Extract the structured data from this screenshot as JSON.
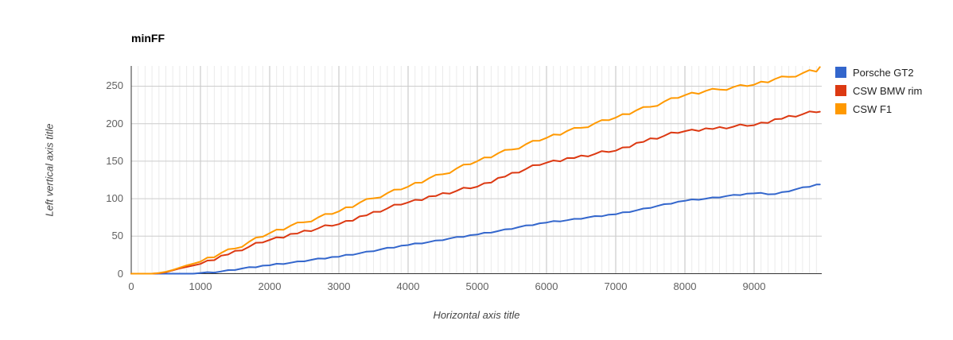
{
  "page": {
    "background": "#ffffff"
  },
  "styles": {
    "grid_major_y_color": "#cccccc",
    "grid_major_x_color": "#c2c2c2",
    "grid_minor_color": "#ebebeb",
    "axis_line_color": "#333333",
    "tick_label_color": "#616161",
    "axis_title_color": "#444444",
    "title_color": "#000000",
    "legend_text_color": "#222222"
  },
  "chart_data": {
    "type": "line",
    "title": "minFF",
    "xlabel": "Horizontal axis title",
    "ylabel": "Left vertical axis title",
    "xlim": [
      0,
      9977
    ],
    "ylim": [
      0,
      277
    ],
    "x_ticks": [
      0,
      1000,
      2000,
      3000,
      4000,
      5000,
      6000,
      7000,
      8000,
      9000
    ],
    "y_ticks": [
      0,
      50,
      100,
      150,
      200,
      250
    ],
    "minor_x_step": 100,
    "grid": true,
    "legend_position": "right",
    "x": [
      0,
      100,
      200,
      300,
      400,
      500,
      600,
      700,
      800,
      900,
      1000,
      1100,
      1200,
      1300,
      1400,
      1500,
      1600,
      1700,
      1800,
      1900,
      2000,
      2100,
      2200,
      2300,
      2400,
      2500,
      2600,
      2700,
      2800,
      2900,
      3000,
      3100,
      3200,
      3300,
      3400,
      3500,
      3600,
      3700,
      3800,
      3900,
      4000,
      4100,
      4200,
      4300,
      4400,
      4500,
      4600,
      4700,
      4800,
      4900,
      5000,
      5100,
      5200,
      5300,
      5400,
      5500,
      5600,
      5700,
      5800,
      5900,
      6000,
      6100,
      6200,
      6300,
      6400,
      6500,
      6600,
      6700,
      6800,
      6900,
      7000,
      7100,
      7200,
      7300,
      7400,
      7500,
      7600,
      7700,
      7800,
      7900,
      8000,
      8100,
      8200,
      8300,
      8400,
      8500,
      8600,
      8700,
      8800,
      8900,
      9000,
      9100,
      9200,
      9300,
      9400,
      9500,
      9600,
      9700,
      9800,
      9900,
      9950
    ],
    "series": [
      {
        "name": "Porsche GT2",
        "color": "#3366CC",
        "values": [
          0,
          0,
          0,
          0,
          0,
          0,
          0,
          0,
          0,
          0,
          1,
          2,
          1.5,
          3,
          4.8,
          4.9,
          6.9,
          8.7,
          8.5,
          10.7,
          11.1,
          13.2,
          12.8,
          14.5,
          16.3,
          16.4,
          18.4,
          20.2,
          20,
          22.2,
          22.6,
          25.1,
          25.1,
          27.2,
          29.4,
          29.9,
          32.3,
          34.5,
          34.7,
          37.3,
          38.1,
          40.4,
          40.3,
          42.2,
          44.3,
          44.6,
          46.9,
          48.9,
          49,
          51.4,
          52.1,
          54.6,
          54.7,
          56.8,
          59.1,
          59.6,
          62.1,
          64.3,
          64.6,
          67.2,
          68.1,
          70.1,
          69.7,
          71.3,
          73.1,
          73.1,
          75.1,
          76.8,
          76.6,
          78.7,
          79.1,
          81.8,
          82.1,
          84.4,
          86.9,
          87.6,
          90.3,
          92.7,
          93.2,
          96,
          97.1,
          99,
          98.5,
          100,
          101.7,
          101.6,
          103.5,
          105.1,
          104.8,
          106.8,
          107.1,
          107.7,
          105.8,
          106,
          108.7,
          109.6,
          112.5,
          115.1,
          115.8,
          118.8,
          119
        ]
      },
      {
        "name": "CSW BMW rim",
        "color": "#DC3912",
        "values": [
          0,
          0,
          0,
          0,
          0.5,
          2,
          4.5,
          7,
          9,
          11,
          13,
          17.5,
          18,
          24,
          25.5,
          30.5,
          30.9,
          35.8,
          41.2,
          41.6,
          45,
          48.5,
          48,
          53,
          53.5,
          57.5,
          56.7,
          60.4,
          64.6,
          63.8,
          66,
          70.3,
          70.6,
          76.4,
          77.7,
          82.5,
          82.5,
          87,
          92,
          92,
          95,
          98.5,
          98,
          103,
          103.5,
          107.5,
          106.7,
          110.4,
          114.6,
          113.8,
          116,
          120.7,
          121.4,
          127.6,
          129.3,
          134.5,
          134.7,
          139.4,
          144.6,
          144.8,
          148,
          150.9,
          149.8,
          154.2,
          154.1,
          157.5,
          156.3,
          159.6,
          163.4,
          162.2,
          164,
          168.3,
          168.6,
          174.4,
          175.7,
          180.5,
          179.9,
          183.8,
          188.2,
          187.6,
          190,
          192.1,
          190.2,
          193.8,
          192.9,
          195.5,
          193.5,
          196,
          199,
          197,
          198,
          201.5,
          201,
          206,
          206.5,
          210.5,
          209.3,
          212.6,
          216.3,
          215.1,
          216
        ]
      },
      {
        "name": "CSW F1",
        "color": "#FF9900",
        "values": [
          0,
          0,
          0,
          0,
          1,
          2.5,
          5,
          8,
          11,
          13.5,
          16,
          21.4,
          21.8,
          27.7,
          32.6,
          33.5,
          35.7,
          42.4,
          48.1,
          49.3,
          54,
          58.8,
          58.6,
          63.9,
          68.2,
          68.5,
          69.5,
          75,
          79.5,
          79.5,
          83,
          88.4,
          88.8,
          94.7,
          99.6,
          100.5,
          101.7,
          107.4,
          112.1,
          112.3,
          116,
          121.2,
          121.4,
          127.1,
          131.8,
          132.5,
          134.1,
          140.2,
          145.3,
          145.9,
          150,
          155,
          155,
          160.5,
          165,
          165.5,
          166.7,
          172.4,
          177.1,
          177.3,
          181,
          185.6,
          185.2,
          190.3,
          194.4,
          194.5,
          195.3,
          200.6,
          204.9,
          204.7,
          208,
          212.8,
          212.6,
          217.9,
          222.2,
          222.5,
          223.7,
          229.4,
          234.1,
          234.3,
          238,
          241.4,
          239.8,
          243.7,
          246.6,
          245.5,
          244.9,
          248.8,
          251.7,
          250.1,
          252,
          256,
          255,
          259.5,
          263,
          262.5,
          262.7,
          267.4,
          271.5,
          269.5,
          275.5
        ]
      }
    ]
  }
}
